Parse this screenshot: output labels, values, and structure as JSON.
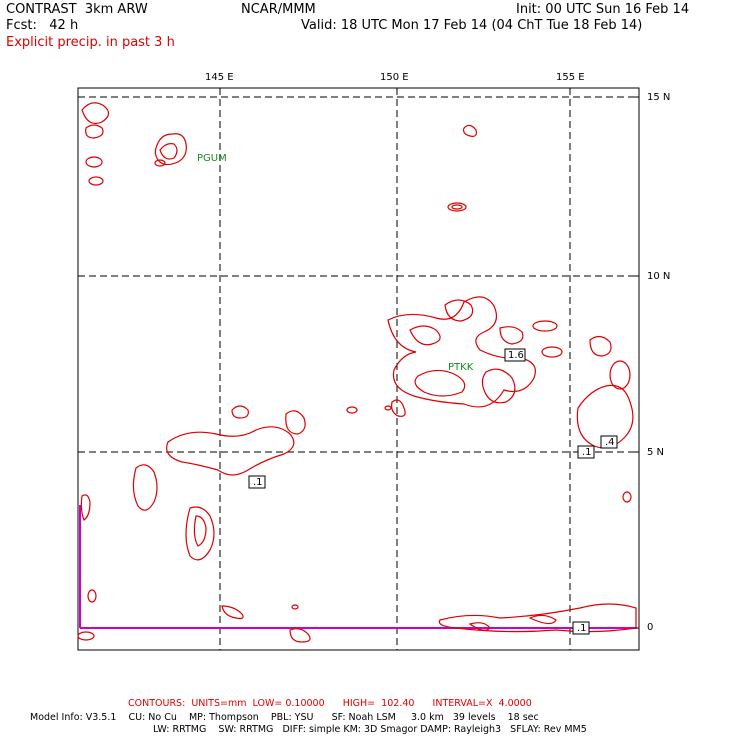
{
  "header": {
    "model": "CONTRAST  3km ARW",
    "org": "NCAR/MMM",
    "init": "Init: 00 UTC Sun 16 Feb 14",
    "fcst": "Fcst:   42 h",
    "valid": "Valid: 18 UTC Mon 17 Feb 14 (04 ChT Tue 18 Feb 14)",
    "field": "Explicit precip. in past 3 h"
  },
  "map": {
    "lon_labels": [
      "145 E",
      "150 E",
      "155 E"
    ],
    "lat_labels": [
      "15 N",
      "10 N",
      "5 N",
      "0"
    ],
    "stations": [
      {
        "id": "PGUM"
      },
      {
        "id": "PTKK"
      }
    ],
    "contour_labels": [
      ".1",
      "1.6",
      ".1",
      ".4",
      ".1"
    ],
    "colors": {
      "contour": "#e00000",
      "grid": "#000000",
      "boundary": "#cc00cc",
      "station": "#1a8a1a"
    }
  },
  "footer": {
    "contours": "CONTOURS:  UNITS=mm  LOW= 0.10000      HIGH=  102.40      INTERVAL=X  4.0000",
    "model_info_1": "Model Info: V3.5.1    CU: No Cu    MP: Thompson    PBL: YSU      SF: Noah LSM     3.0 km   39 levels    18 sec",
    "model_info_2": "LW: RRTMG    SW: RRTMG   DIFF: simple KM: 3D Smagor DAMP: Rayleigh3   SFLAY: Rev MM5"
  }
}
